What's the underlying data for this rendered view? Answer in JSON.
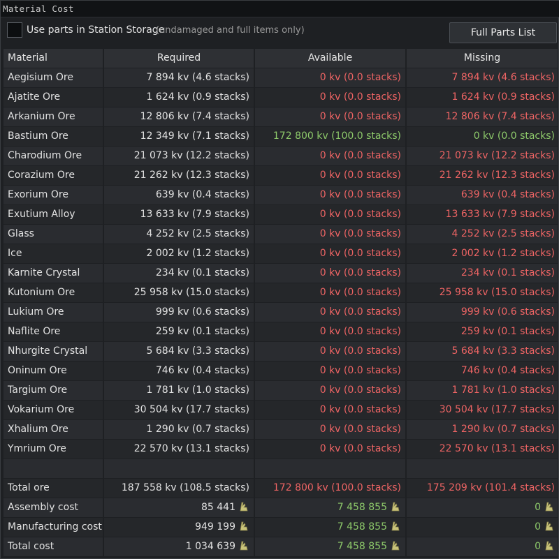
{
  "window": {
    "title": "Material Cost"
  },
  "options": {
    "checkbox_label": "Use parts in Station Storage",
    "checkbox_note": "(undamaged and full items only)",
    "checkbox_checked": false,
    "full_parts_button": "Full Parts List"
  },
  "table": {
    "headers": [
      "Material",
      "Required",
      "Available",
      "Missing"
    ],
    "rows": [
      {
        "material": "Aegisium Ore",
        "required": "7 894 kv (4.6 stacks)",
        "available": "0 kv (0.0 stacks)",
        "missing": "7 894 kv (4.6 stacks)"
      },
      {
        "material": "Ajatite Ore",
        "required": "1 624 kv (0.9 stacks)",
        "available": "0 kv (0.0 stacks)",
        "missing": "1 624 kv (0.9 stacks)"
      },
      {
        "material": "Arkanium Ore",
        "required": "12 806 kv (7.4 stacks)",
        "available": "0 kv (0.0 stacks)",
        "missing": "12 806 kv (7.4 stacks)"
      },
      {
        "material": "Bastium Ore",
        "required": "12 349 kv (7.1 stacks)",
        "available": "172 800 kv (100.0 stacks)",
        "missing": "0 kv (0.0 stacks)",
        "available_color": "green",
        "missing_color": "green"
      },
      {
        "material": "Charodium Ore",
        "required": "21 073 kv (12.2 stacks)",
        "available": "0 kv (0.0 stacks)",
        "missing": "21 073 kv (12.2 stacks)"
      },
      {
        "material": "Corazium Ore",
        "required": "21 262 kv (12.3 stacks)",
        "available": "0 kv (0.0 stacks)",
        "missing": "21 262 kv (12.3 stacks)"
      },
      {
        "material": "Exorium Ore",
        "required": "639 kv (0.4 stacks)",
        "available": "0 kv (0.0 stacks)",
        "missing": "639 kv (0.4 stacks)"
      },
      {
        "material": "Exutium Alloy",
        "required": "13 633 kv (7.9 stacks)",
        "available": "0 kv (0.0 stacks)",
        "missing": "13 633 kv (7.9 stacks)"
      },
      {
        "material": "Glass",
        "required": "4 252 kv (2.5 stacks)",
        "available": "0 kv (0.0 stacks)",
        "missing": "4 252 kv (2.5 stacks)"
      },
      {
        "material": "Ice",
        "required": "2 002 kv (1.2 stacks)",
        "available": "0 kv (0.0 stacks)",
        "missing": "2 002 kv (1.2 stacks)"
      },
      {
        "material": "Karnite Crystal",
        "required": "234 kv (0.1 stacks)",
        "available": "0 kv (0.0 stacks)",
        "missing": "234 kv (0.1 stacks)"
      },
      {
        "material": "Kutonium Ore",
        "required": "25 958 kv (15.0 stacks)",
        "available": "0 kv (0.0 stacks)",
        "missing": "25 958 kv (15.0 stacks)"
      },
      {
        "material": "Lukium Ore",
        "required": "999 kv (0.6 stacks)",
        "available": "0 kv (0.0 stacks)",
        "missing": "999 kv (0.6 stacks)"
      },
      {
        "material": "Naflite Ore",
        "required": "259 kv (0.1 stacks)",
        "available": "0 kv (0.0 stacks)",
        "missing": "259 kv (0.1 stacks)"
      },
      {
        "material": "Nhurgite Crystal",
        "required": "5 684 kv (3.3 stacks)",
        "available": "0 kv (0.0 stacks)",
        "missing": "5 684 kv (3.3 stacks)"
      },
      {
        "material": "Oninum Ore",
        "required": "746 kv (0.4 stacks)",
        "available": "0 kv (0.0 stacks)",
        "missing": "746 kv (0.4 stacks)"
      },
      {
        "material": "Targium Ore",
        "required": "1 781 kv (1.0 stacks)",
        "available": "0 kv (0.0 stacks)",
        "missing": "1 781 kv (1.0 stacks)"
      },
      {
        "material": "Vokarium Ore",
        "required": "30 504 kv (17.7 stacks)",
        "available": "0 kv (0.0 stacks)",
        "missing": "30 504 kv (17.7 stacks)"
      },
      {
        "material": "Xhalium Ore",
        "required": "1 290 kv (0.7 stacks)",
        "available": "0 kv (0.0 stacks)",
        "missing": "1 290 kv (0.7 stacks)"
      },
      {
        "material": "Ymrium Ore",
        "required": "22 570 kv (13.1 stacks)",
        "available": "0 kv (0.0 stacks)",
        "missing": "22 570 kv (13.1 stacks)"
      }
    ],
    "total_ore": {
      "label": "Total ore",
      "required": "187 558 kv (108.5 stacks)",
      "available": "172 800 kv (100.0 stacks)",
      "missing": "175 209 kv (101.4 stacks)"
    },
    "costs": [
      {
        "label": "Assembly cost",
        "required": "85 441",
        "available": "7 458 855",
        "missing": "0"
      },
      {
        "label": "Manufacturing cost",
        "required": "949 199",
        "available": "7 458 855",
        "missing": "0"
      },
      {
        "label": "Total cost",
        "required": "1 034 639",
        "available": "7 458 855",
        "missing": "0"
      }
    ]
  },
  "colors": {
    "missing": "#ee6464",
    "available_ok": "#8dc96a",
    "credit_icon": "#c9c37a"
  },
  "icons": {
    "currency": "credits-icon"
  }
}
